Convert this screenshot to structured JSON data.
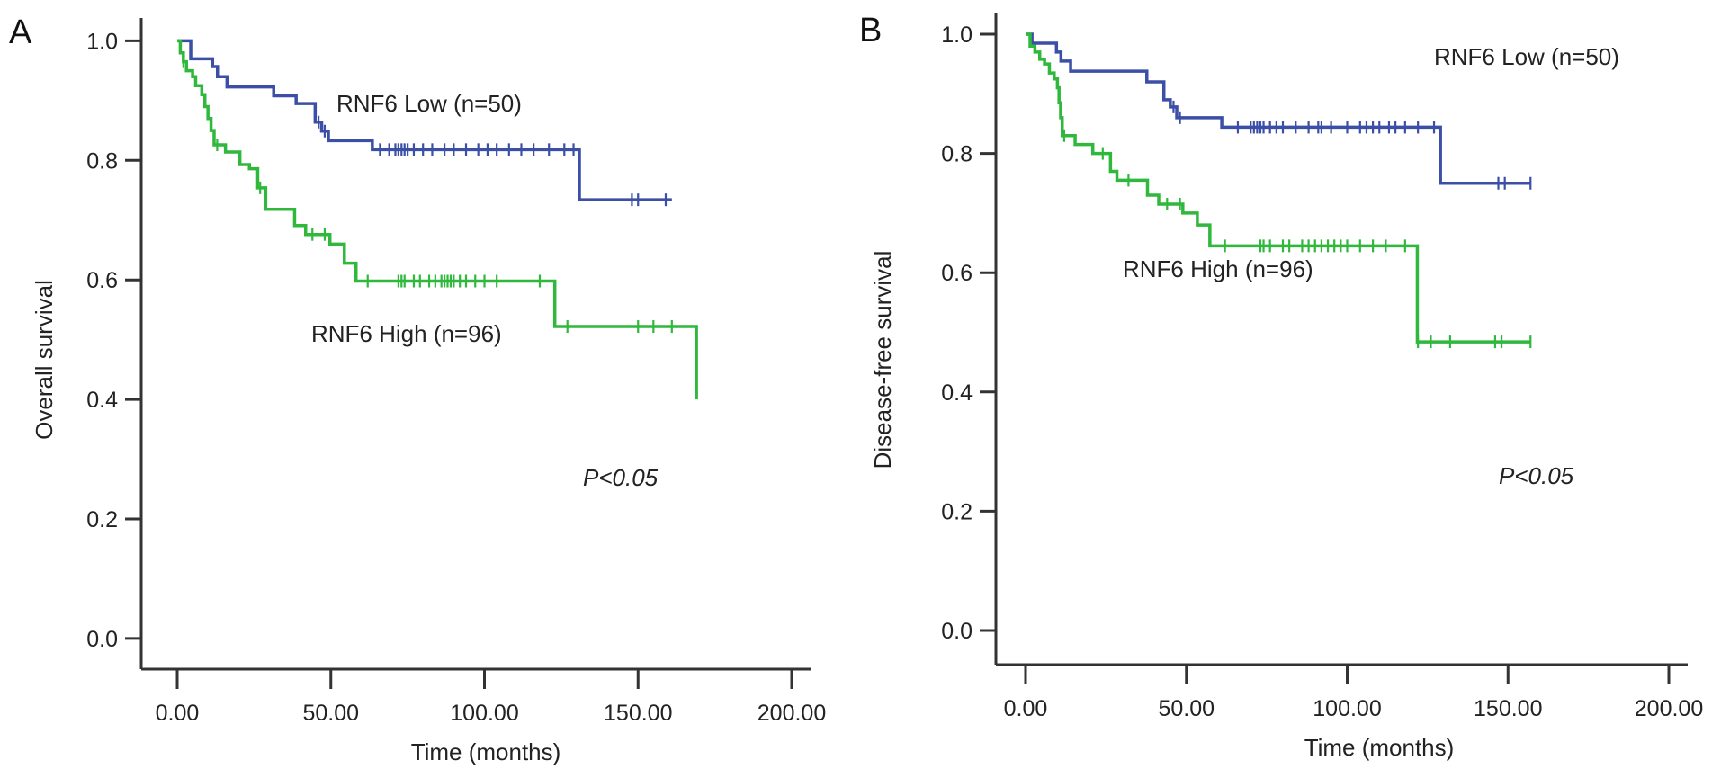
{
  "colors": {
    "low": "#3b4fa6",
    "high": "#2fb83c",
    "axis": "#333333"
  },
  "chart_data": [
    {
      "type": "line",
      "subtype": "kaplan-meier",
      "panel_label": "A",
      "xlabel": "Time (months)",
      "ylabel": "Overall survival",
      "xlim": [
        0,
        200
      ],
      "ylim": [
        0,
        1
      ],
      "xticks": [
        "0.00",
        "50.00",
        "100.00",
        "150.00",
        "200.00"
      ],
      "xtick_values": [
        0,
        50,
        100,
        150,
        200
      ],
      "yticks": [
        "0.0",
        "0.2",
        "0.4",
        "0.6",
        "0.8",
        "1.0"
      ],
      "ytick_values": [
        0,
        0.2,
        0.4,
        0.6,
        0.8,
        1.0
      ],
      "annotation": "P<0.05",
      "series": [
        {
          "name": "RNF6 Low (n=50)",
          "key": "low",
          "steps": [
            [
              0,
              1.0
            ],
            [
              4.4,
              0.97
            ],
            [
              11.5,
              0.957
            ],
            [
              13.1,
              0.94
            ],
            [
              16.2,
              0.923
            ],
            [
              31.4,
              0.908
            ],
            [
              38.7,
              0.895
            ],
            [
              44.9,
              0.864
            ],
            [
              47.0,
              0.849
            ],
            [
              49.2,
              0.833
            ],
            [
              63.5,
              0.818
            ],
            [
              130.9,
              0.734
            ]
          ],
          "end": 161,
          "censored": [
            46,
            48,
            66,
            69,
            71,
            72,
            73,
            74,
            75,
            77,
            80,
            83,
            87,
            90,
            94,
            98,
            101,
            104,
            108,
            112,
            116,
            121,
            126,
            129,
            148,
            150,
            159
          ]
        },
        {
          "name": "RNF6 High (n=96)",
          "key": "high",
          "steps": [
            [
              0,
              1.0
            ],
            [
              1,
              0.98
            ],
            [
              2,
              0.965
            ],
            [
              3,
              0.95
            ],
            [
              5,
              0.94
            ],
            [
              6,
              0.925
            ],
            [
              8,
              0.91
            ],
            [
              9,
              0.89
            ],
            [
              10,
              0.87
            ],
            [
              11,
              0.85
            ],
            [
              12,
              0.826
            ],
            [
              15.7,
              0.814
            ],
            [
              20.4,
              0.793
            ],
            [
              23.5,
              0.786
            ],
            [
              26.2,
              0.754
            ],
            [
              28.8,
              0.718
            ],
            [
              38.2,
              0.691
            ],
            [
              41.8,
              0.676
            ],
            [
              49.7,
              0.66
            ],
            [
              54.4,
              0.628
            ],
            [
              58.2,
              0.598
            ],
            [
              122.9,
              0.522
            ],
            [
              169,
              0.4
            ]
          ],
          "end": 169,
          "censored": [
            2,
            13,
            27,
            44,
            48,
            62,
            72,
            73,
            74,
            77,
            79,
            82,
            84,
            86,
            87,
            88,
            89,
            90,
            92,
            94,
            97,
            100,
            104,
            118,
            127,
            150,
            155,
            161
          ]
        }
      ]
    },
    {
      "type": "line",
      "subtype": "kaplan-meier",
      "panel_label": "B",
      "xlabel": "Time (months)",
      "ylabel": "Disease-free survival",
      "xlim": [
        0,
        200
      ],
      "ylim": [
        0,
        1
      ],
      "xticks": [
        "0.00",
        "50.00",
        "100.00",
        "150.00",
        "200.00"
      ],
      "xtick_values": [
        0,
        50,
        100,
        150,
        200
      ],
      "yticks": [
        "0.0",
        "0.2",
        "0.4",
        "0.6",
        "0.8",
        "1.0"
      ],
      "ytick_values": [
        0,
        0.2,
        0.4,
        0.6,
        0.8,
        1.0
      ],
      "annotation": "P<0.05",
      "series": [
        {
          "name": "RNF6 Low (n=50)",
          "key": "low",
          "steps": [
            [
              0,
              1.0
            ],
            [
              2,
              0.985
            ],
            [
              9.6,
              0.97
            ],
            [
              11,
              0.955
            ],
            [
              14,
              0.938
            ],
            [
              37.7,
              0.92
            ],
            [
              43,
              0.89
            ],
            [
              45,
              0.878
            ],
            [
              47,
              0.86
            ],
            [
              61,
              0.844
            ],
            [
              129,
              0.75
            ]
          ],
          "end": 157,
          "censored": [
            46,
            48,
            66,
            70,
            71,
            72,
            73,
            74,
            76,
            78,
            80,
            84,
            88,
            91,
            92,
            95,
            100,
            104,
            106,
            108,
            110,
            113,
            115,
            118,
            122,
            127,
            147,
            149,
            157
          ]
        },
        {
          "name": "RNF6 High (n=96)",
          "key": "high",
          "steps": [
            [
              0,
              1.0
            ],
            [
              1.4,
              0.98
            ],
            [
              2.9,
              0.97
            ],
            [
              4.4,
              0.958
            ],
            [
              5.9,
              0.95
            ],
            [
              7.4,
              0.935
            ],
            [
              8.9,
              0.925
            ],
            [
              9.9,
              0.91
            ],
            [
              10.4,
              0.885
            ],
            [
              10.9,
              0.86
            ],
            [
              11.4,
              0.83
            ],
            [
              15.4,
              0.815
            ],
            [
              20.9,
              0.8
            ],
            [
              26.4,
              0.77
            ],
            [
              28.4,
              0.755
            ],
            [
              37.9,
              0.73
            ],
            [
              41.4,
              0.715
            ],
            [
              48.9,
              0.7
            ],
            [
              53.4,
              0.68
            ],
            [
              57.3,
              0.645
            ],
            [
              121.8,
              0.484
            ]
          ],
          "end": 157,
          "censored": [
            12,
            24,
            32,
            44,
            48,
            62,
            73,
            74,
            76,
            80,
            82,
            86,
            88,
            90,
            92,
            94,
            96,
            98,
            100,
            104,
            108,
            112,
            118,
            122,
            126,
            132,
            146,
            148,
            157
          ]
        }
      ]
    }
  ]
}
